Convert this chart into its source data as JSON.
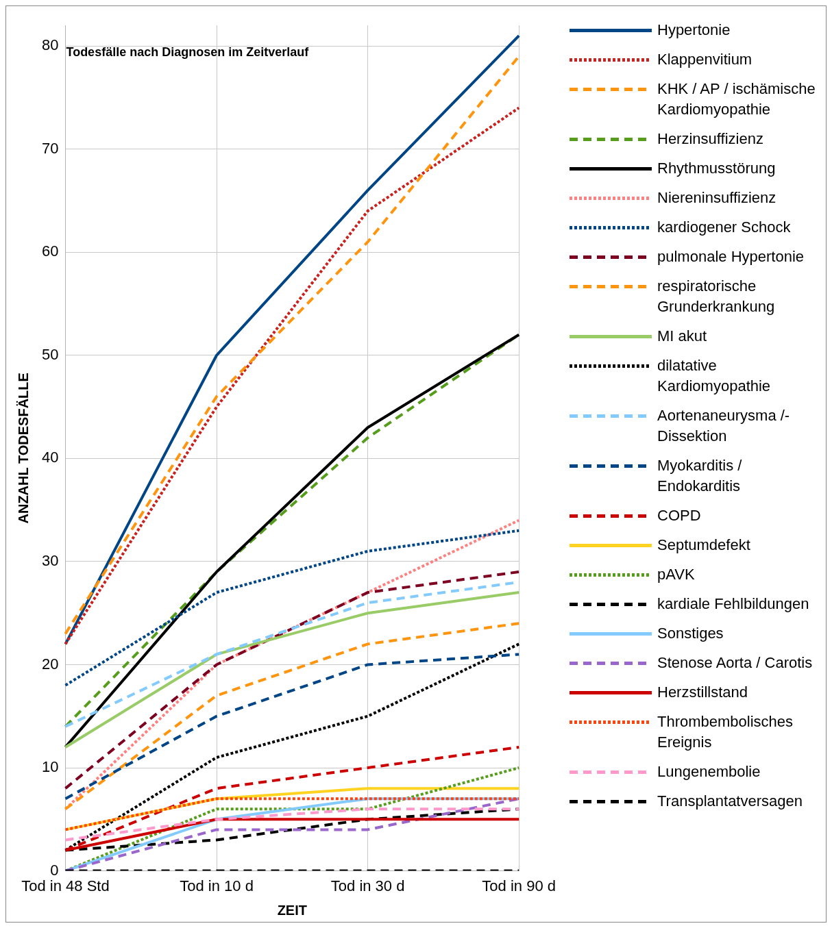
{
  "chart_data": {
    "type": "line",
    "title": "Todesfälle nach Diagnosen im Zeitverlauf",
    "xlabel": "ZEIT",
    "ylabel": "ANZAHL TODESFÄLLE",
    "categories": [
      "Tod in 48 Std",
      "Tod in 10 d",
      "Tod in 30 d",
      "Tod in 90 d"
    ],
    "ylim": [
      0,
      82
    ],
    "yticks": [
      0,
      10,
      20,
      30,
      40,
      50,
      60,
      70,
      80
    ],
    "grid": true,
    "legend": "right",
    "marker": "none",
    "series": [
      {
        "name": "Hypertonie",
        "color": "#004586",
        "line_style": "solid",
        "values": [
          22,
          50,
          66,
          81
        ]
      },
      {
        "name": "Klappenvitium",
        "color": "#c9211e",
        "line_style": "dotted",
        "values": [
          22,
          45,
          64,
          74
        ]
      },
      {
        "name": "KHK / AP / ischämische Kardiomyopathie",
        "color": "#ff950e",
        "line_style": "dashed",
        "values": [
          23,
          46,
          61,
          79
        ]
      },
      {
        "name": "Herzinsuffizienz",
        "color": "#579d1c",
        "line_style": "dashed",
        "values": [
          14,
          29,
          42,
          52
        ]
      },
      {
        "name": "Rhythmusstörung",
        "color": "#000000",
        "line_style": "solid",
        "values": [
          12,
          29,
          43,
          52
        ]
      },
      {
        "name": "Niereninsuffizienz",
        "color": "#ff8080",
        "line_style": "dotted",
        "values": [
          6,
          20,
          27,
          34
        ]
      },
      {
        "name": "kardiogener Schock",
        "color": "#004586",
        "line_style": "dotted",
        "values": [
          18,
          27,
          31,
          33
        ]
      },
      {
        "name": "pulmonale Hypertonie",
        "color": "#7e0021",
        "line_style": "dashed",
        "values": [
          8,
          20,
          27,
          29
        ]
      },
      {
        "name": "respiratorische Grunderkrankung",
        "color": "#ff950e",
        "line_style": "dashed",
        "values": [
          6,
          17,
          22,
          24
        ]
      },
      {
        "name": "MI akut",
        "color": "#99cc66",
        "line_style": "solid",
        "values": [
          12,
          21,
          25,
          27
        ]
      },
      {
        "name": "dilatative Kardiomyopathie",
        "color": "#000000",
        "line_style": "dotted",
        "values": [
          2,
          11,
          15,
          22
        ]
      },
      {
        "name": "Aortenaneurysma /-Dissektion",
        "color": "#83caff",
        "line_style": "dashed",
        "values": [
          14,
          21,
          26,
          28
        ]
      },
      {
        "name": "Myokarditis / Endokarditis",
        "color": "#004586",
        "line_style": "dashed",
        "values": [
          7,
          15,
          20,
          21
        ]
      },
      {
        "name": "COPD",
        "color": "#cc0000",
        "line_style": "dashed",
        "values": [
          2,
          8,
          10,
          12
        ]
      },
      {
        "name": "Septumdefekt",
        "color": "#ffd320",
        "line_style": "solid",
        "values": [
          4,
          7,
          8,
          8
        ]
      },
      {
        "name": "pAVK",
        "color": "#579d1c",
        "line_style": "dotted",
        "values": [
          0,
          6,
          6,
          10
        ]
      },
      {
        "name": "kardiale Fehlbildungen",
        "color": "#000000",
        "line_style": "dashed",
        "values": [
          2,
          3,
          5,
          6
        ]
      },
      {
        "name": "Sonstiges",
        "color": "#83caff",
        "line_style": "solid",
        "values": [
          0,
          5,
          7,
          7
        ]
      },
      {
        "name": "Stenose Aorta / Carotis",
        "color": "#9966cc",
        "line_style": "dashed",
        "values": [
          0,
          4,
          4,
          7
        ]
      },
      {
        "name": "Herzstillstand",
        "color": "#cc0000",
        "line_style": "solid",
        "values": [
          2,
          5,
          5,
          5
        ]
      },
      {
        "name": "Thrombembolisches Ereignis",
        "color": "#ff420e",
        "line_style": "dotted",
        "values": [
          4,
          7,
          7,
          7
        ]
      },
      {
        "name": "Lungenembolie",
        "color": "#ff99cc",
        "line_style": "dashed",
        "values": [
          3,
          5,
          6,
          6
        ]
      },
      {
        "name": "Transplantatversagen",
        "color": "#000000",
        "line_style": "dashed",
        "values": [
          0,
          0,
          0,
          0
        ]
      }
    ]
  }
}
